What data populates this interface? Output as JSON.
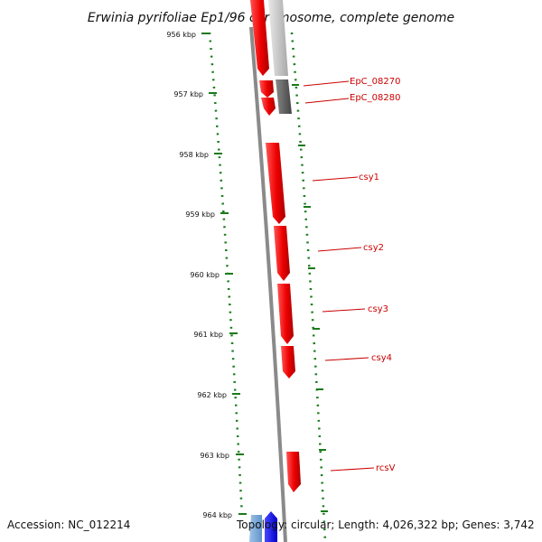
{
  "title": "Erwinia pyrifoliae Ep1/96 chromosome, complete genome",
  "kbp_labels": [
    "956 kbp",
    "957 kbp",
    "958 kbp",
    "959 kbp",
    "960 kbp",
    "961 kbp",
    "962 kbp",
    "963 kbp",
    "964 kbp"
  ],
  "gene_labels": [
    "EpC_08270",
    "EpC_08280",
    "csy1",
    "csy2",
    "csy3",
    "csy4",
    "rcsV"
  ],
  "footer": {
    "accession": "Accession: NC_012214",
    "stats": "Topology: circular; Length: 4,026,322 bp; Genes: 3,742"
  },
  "colors": {
    "forward_gene": "#ff0000",
    "reverse_gene": "#c8c8c8",
    "dark_gene": "#666666",
    "tick": "#1a7a1a",
    "label": "#cc0000"
  }
}
